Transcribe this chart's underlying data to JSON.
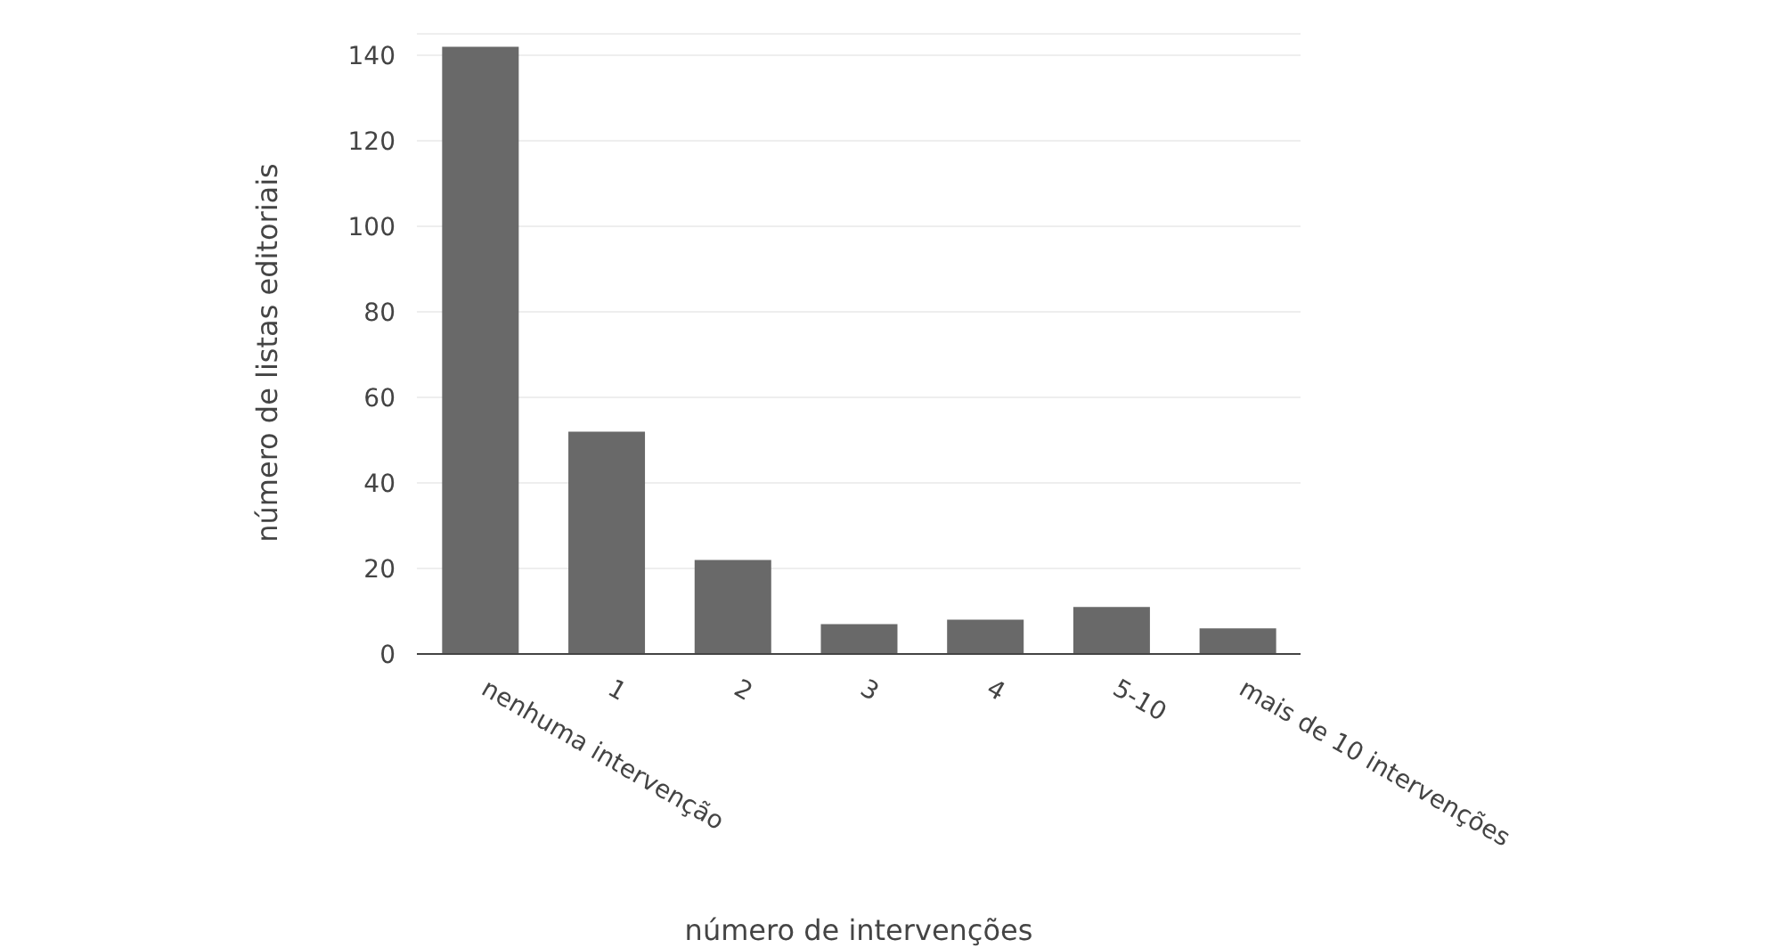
{
  "chart_data": {
    "type": "bar",
    "xlabel": "número de intervenções",
    "ylabel": "número de listas editoriais",
    "categories": [
      "nenhuma intervenção",
      "1",
      "2",
      "3",
      "4",
      "5-10",
      "mais de 10 intervenções"
    ],
    "values": [
      142,
      52,
      22,
      7,
      8,
      11,
      6
    ],
    "color": "#696969",
    "ylim": [
      0,
      145
    ],
    "yticks": [
      0,
      20,
      40,
      60,
      80,
      100,
      120,
      140
    ],
    "grid": "y"
  }
}
